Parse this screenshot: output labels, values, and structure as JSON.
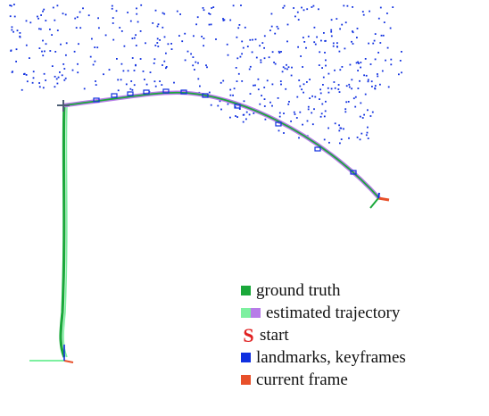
{
  "colors": {
    "ground_truth": "#1aa83a",
    "estimated_a": "#7df0a0",
    "estimated_b": "#b77ce8",
    "start": "#e02020",
    "landmarks": "#1030e0",
    "current_frame": "#e8502a"
  },
  "legend": {
    "ground_truth": "ground truth",
    "estimated": "estimated trajectory",
    "start_glyph": "S",
    "start": "start",
    "landmarks": "landmarks, keyframes",
    "current_frame": "current frame"
  }
}
